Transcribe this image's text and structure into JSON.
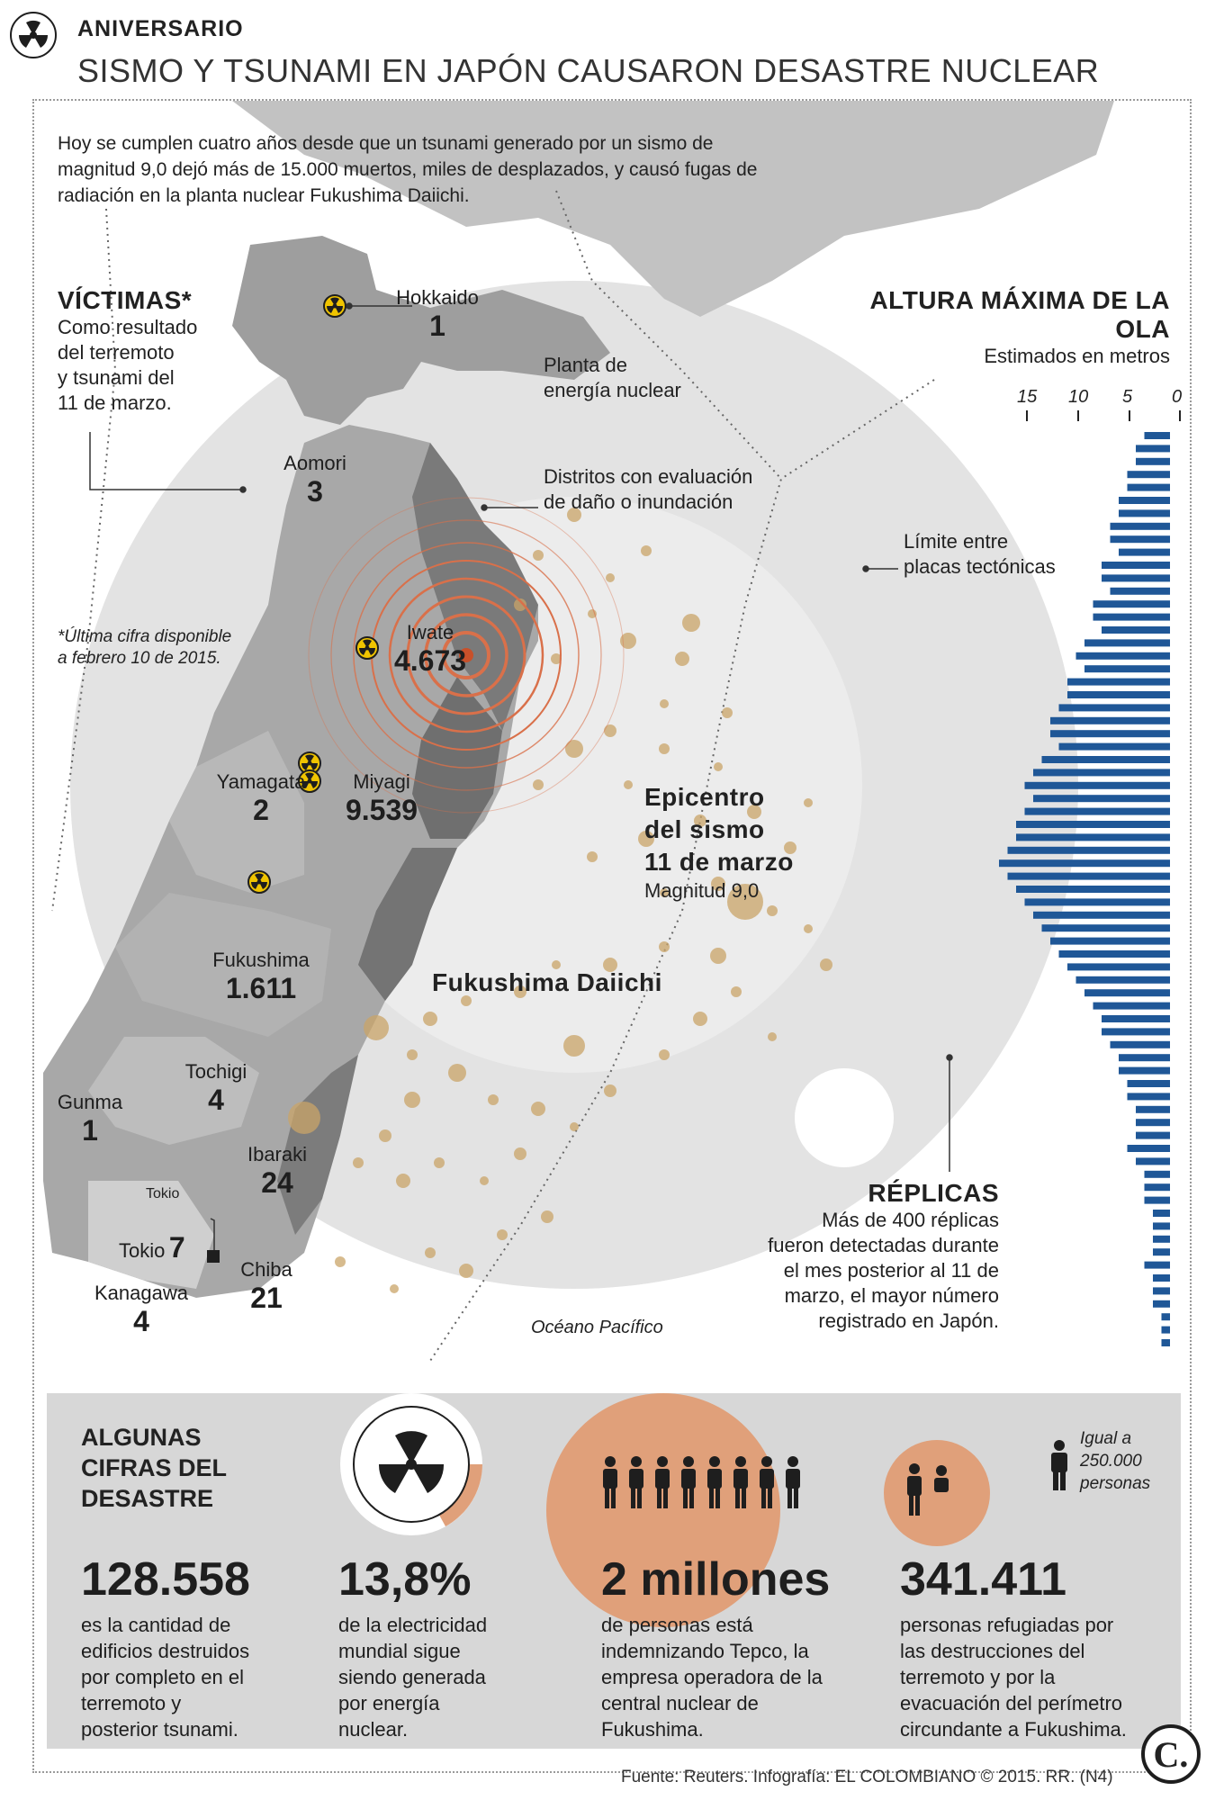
{
  "header": {
    "kicker": "ANIVERSARIO",
    "title": "SISMO Y TSUNAMI EN JAPÓN CAUSARON DESASTRE NUCLEAR"
  },
  "intro": "Hoy se cumplen cuatro años desde que un tsunami generado por un sismo de magnitud 9,0 dejó más de 15.000 muertos, miles de desplazados, y causó fugas de radiación en la planta nuclear Fukushima Daiichi.",
  "victims": {
    "title": "VÍCTIMAS*",
    "desc_lines": [
      "Como resultado",
      "del terremoto",
      "y tsunami del",
      "11 de marzo."
    ],
    "note_lines": [
      "*Última cifra disponible",
      "a febrero 10 de 2015."
    ]
  },
  "prefectures": [
    {
      "name": "Hokkaido",
      "count": "1"
    },
    {
      "name": "Aomori",
      "count": "3"
    },
    {
      "name": "Iwate",
      "count": "4.673"
    },
    {
      "name": "Yamagata",
      "count": "2"
    },
    {
      "name": "Miyagi",
      "count": "9.539"
    },
    {
      "name": "Fukushima",
      "count": "1.611"
    },
    {
      "name": "Tochigi",
      "count": "4"
    },
    {
      "name": "Gunma",
      "count": "1"
    },
    {
      "name": "Ibaraki",
      "count": "24"
    },
    {
      "name": "Tokio",
      "count": "7"
    },
    {
      "name": "Kanagawa",
      "count": "4"
    },
    {
      "name": "Chiba",
      "count": "21"
    }
  ],
  "tokio_callout": "Tokio",
  "legend": {
    "plant": [
      "Planta de",
      "energía nuclear"
    ],
    "districts": [
      "Distritos con evaluación",
      "de daño o inundación"
    ],
    "plates": [
      "Límite entre",
      "placas tectónicas"
    ]
  },
  "epicenter": {
    "title_lines": [
      "Epicentro",
      "del sismo",
      "11 de marzo"
    ],
    "magnitude": "Magnitud 9,0"
  },
  "plant_label": "Fukushima Daiichi",
  "ocean_label": "Océano Pacífico",
  "aftershocks": {
    "title": "RÉPLICAS",
    "desc_lines": [
      "Más de 400 réplicas",
      "fueron detectadas durante",
      "el mes posterior al 11 de",
      "marzo, el mayor número",
      "registrado en Japón."
    ]
  },
  "wave": {
    "title": "ALTURA MÁXIMA DE LA OLA",
    "subtitle": "Estimados en metros",
    "ticks": [
      "15",
      "10",
      "5",
      "0"
    ]
  },
  "stats": {
    "title_lines": [
      "ALGUNAS",
      "CIFRAS DEL",
      "DESASTRE"
    ],
    "items": [
      {
        "number": "128.558",
        "desc_lines": [
          "es la cantidad de",
          "edificios destruidos",
          "por completo en el",
          "terremoto y",
          "posterior tsunami."
        ]
      },
      {
        "number": "13,8%",
        "desc_lines": [
          "de la electricidad",
          "mundial sigue",
          "siendo generada",
          "por energía",
          "nuclear."
        ]
      },
      {
        "number": "2 millones",
        "desc_lines": [
          "de personas está",
          "indemnizando Tepco, la",
          "empresa operadora de la",
          "central nuclear de",
          "Fukushima."
        ]
      },
      {
        "number": "341.411",
        "desc_lines": [
          "personas refugiadas por",
          "las destrucciones del",
          "terremoto y por la",
          "evacuación del perímetro",
          "circundante a Fukushima."
        ]
      }
    ],
    "person_legend": [
      "Igual a",
      "250.000",
      "personas"
    ]
  },
  "source": "Fuente: Reuters. Infografía: EL COLOMBIANO © 2015. RR. (N4)",
  "logo": "C.",
  "colors": {
    "land_light": "#c9c9c9",
    "land_dark": "#8a8a8a",
    "ocean_bg": "#e6e6e6",
    "aftershock": "#c9a468",
    "rings": "#d9704a",
    "epicenter": "#c8502a",
    "bars": "#1f5797",
    "orange": "#e0a07a",
    "nuclear_yellow": "#f0c400"
  }
}
